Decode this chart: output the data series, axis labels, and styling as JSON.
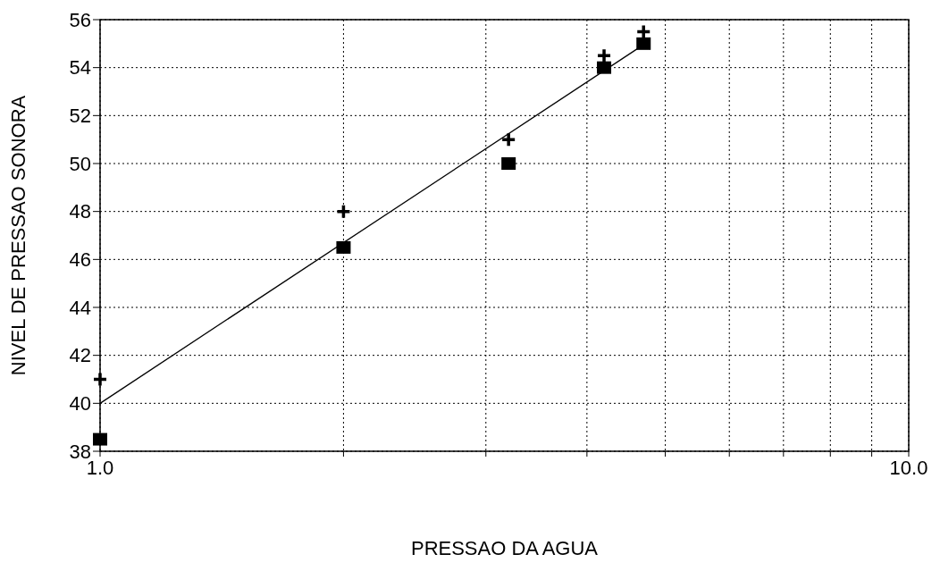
{
  "chart_data": {
    "type": "scatter",
    "xlabel": "PRESSAO DA AGUA",
    "ylabel": "NIVEL DE PRESSAO SONORA",
    "log": "x",
    "grid": true,
    "xlim": [
      1,
      10
    ],
    "xticks": [
      {
        "value": 1,
        "label": "1.0"
      },
      {
        "value": 2,
        "label": null
      },
      {
        "value": 3,
        "label": null
      },
      {
        "value": 4,
        "label": null
      },
      {
        "value": 5,
        "label": null
      },
      {
        "value": 6,
        "label": null
      },
      {
        "value": 7,
        "label": null
      },
      {
        "value": 8,
        "label": null
      },
      {
        "value": 9,
        "label": null
      },
      {
        "value": 10,
        "label": "10.0"
      }
    ],
    "ylim": [
      38,
      56
    ],
    "yticks": [
      38,
      40,
      42,
      44,
      46,
      48,
      50,
      52,
      54,
      56
    ],
    "series": [
      {
        "marker": "cross",
        "color": "#000000",
        "x": [
          1,
          2,
          3.2,
          4.2,
          4.7
        ],
        "values": [
          41,
          48,
          51,
          54.5,
          55.5
        ]
      },
      {
        "marker": "square",
        "color": "#000000",
        "x": [
          1,
          2,
          3.2,
          4.2,
          4.7
        ],
        "values": [
          38.5,
          46.5,
          50,
          54,
          55
        ]
      },
      {
        "type": "line",
        "marker": "none",
        "line_style": "solid",
        "color": "#000000",
        "x": [
          1,
          4.72
        ],
        "values": [
          40,
          55
        ]
      }
    ]
  }
}
